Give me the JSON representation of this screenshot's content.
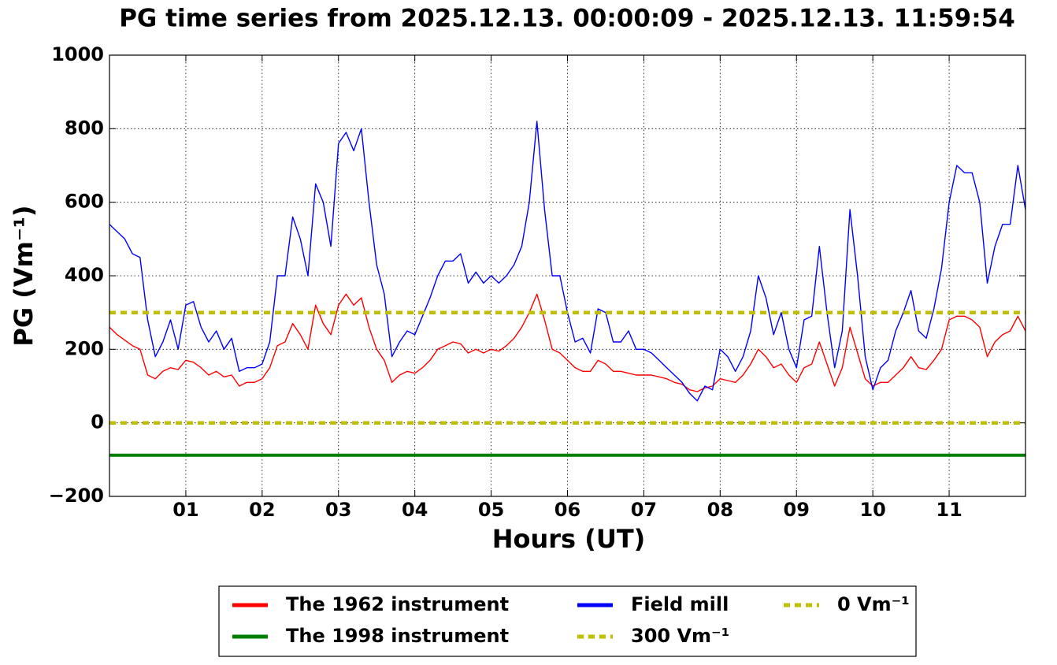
{
  "chart_data": {
    "type": "line",
    "title": "PG time series from 2025.12.13. 00:00:09 - 2025.12.13. 11:59:54",
    "xlabel": "Hours (UT)",
    "ylabel": "PG (Vm⁻¹)",
    "xlim": [
      0,
      12
    ],
    "ylim": [
      -200,
      1000
    ],
    "xticks": [
      {
        "value": 1,
        "label": "01"
      },
      {
        "value": 2,
        "label": "02"
      },
      {
        "value": 3,
        "label": "03"
      },
      {
        "value": 4,
        "label": "04"
      },
      {
        "value": 5,
        "label": "05"
      },
      {
        "value": 6,
        "label": "06"
      },
      {
        "value": 7,
        "label": "07"
      },
      {
        "value": 8,
        "label": "08"
      },
      {
        "value": 9,
        "label": "09"
      },
      {
        "value": 10,
        "label": "10"
      },
      {
        "value": 11,
        "label": "11"
      }
    ],
    "yticks": [
      {
        "value": -200,
        "label": "−200"
      },
      0,
      200,
      400,
      600,
      800,
      1000
    ],
    "grid": true,
    "legend": "below",
    "x": [
      0,
      0.1,
      0.2,
      0.3,
      0.4,
      0.5,
      0.6,
      0.7,
      0.8,
      0.9,
      1,
      1.1,
      1.2,
      1.3,
      1.4,
      1.5,
      1.6,
      1.7,
      1.8,
      1.9,
      2,
      2.1,
      2.2,
      2.3,
      2.4,
      2.5,
      2.6,
      2.7,
      2.8,
      2.9,
      3,
      3.1,
      3.2,
      3.3,
      3.4,
      3.5,
      3.6,
      3.7,
      3.8,
      3.9,
      4,
      4.1,
      4.2,
      4.3,
      4.4,
      4.5,
      4.6,
      4.7,
      4.8,
      4.9,
      5,
      5.1,
      5.2,
      5.3,
      5.4,
      5.5,
      5.6,
      5.7,
      5.8,
      5.9,
      6,
      6.1,
      6.2,
      6.3,
      6.4,
      6.5,
      6.6,
      6.7,
      6.8,
      6.9,
      7,
      7.1,
      7.2,
      7.3,
      7.4,
      7.5,
      7.6,
      7.7,
      7.8,
      7.9,
      8,
      8.1,
      8.2,
      8.3,
      8.4,
      8.5,
      8.6,
      8.7,
      8.8,
      8.9,
      9,
      9.1,
      9.2,
      9.3,
      9.4,
      9.5,
      9.6,
      9.7,
      9.8,
      9.9,
      10,
      10.1,
      10.2,
      10.3,
      10.4,
      10.5,
      10.6,
      10.7,
      10.8,
      10.9,
      11,
      11.1,
      11.2,
      11.3,
      11.4,
      11.5,
      11.6,
      11.7,
      11.8,
      11.9,
      12
    ],
    "series": [
      {
        "name": "The 1962 instrument",
        "color": "#ff0000",
        "width": 1.4,
        "values": [
          260,
          240,
          225,
          210,
          200,
          130,
          120,
          140,
          150,
          145,
          170,
          165,
          150,
          130,
          140,
          125,
          130,
          100,
          110,
          110,
          120,
          150,
          210,
          220,
          270,
          240,
          200,
          320,
          270,
          240,
          320,
          350,
          320,
          340,
          260,
          200,
          170,
          110,
          130,
          140,
          135,
          150,
          170,
          200,
          210,
          220,
          215,
          190,
          200,
          190,
          200,
          195,
          210,
          230,
          260,
          300,
          350,
          280,
          200,
          190,
          170,
          150,
          140,
          140,
          170,
          160,
          140,
          140,
          135,
          130,
          130,
          130,
          125,
          120,
          110,
          105,
          90,
          85,
          95,
          100,
          120,
          115,
          110,
          130,
          160,
          200,
          180,
          150,
          160,
          130,
          110,
          150,
          160,
          220,
          160,
          100,
          150,
          260,
          190,
          120,
          100,
          110,
          110,
          130,
          150,
          180,
          150,
          145,
          170,
          200,
          280,
          290,
          290,
          280,
          260,
          180,
          220,
          240,
          250,
          290,
          250
        ]
      },
      {
        "name": "The 1998 instrument",
        "color": "#008000",
        "width": 4,
        "x": [
          0,
          12
        ],
        "values": [
          -88,
          -88
        ]
      },
      {
        "name": "Field mill",
        "color": "#0000ff",
        "width": 1.4,
        "values": [
          540,
          520,
          500,
          460,
          450,
          280,
          180,
          220,
          280,
          200,
          320,
          330,
          260,
          220,
          250,
          200,
          230,
          140,
          150,
          150,
          160,
          220,
          400,
          400,
          560,
          500,
          400,
          650,
          600,
          480,
          760,
          790,
          740,
          800,
          600,
          430,
          350,
          180,
          220,
          250,
          240,
          290,
          340,
          400,
          440,
          440,
          460,
          380,
          410,
          380,
          400,
          380,
          400,
          430,
          480,
          600,
          820,
          580,
          400,
          400,
          300,
          220,
          230,
          190,
          310,
          300,
          220,
          220,
          250,
          200,
          200,
          190,
          170,
          150,
          130,
          110,
          80,
          60,
          100,
          90,
          200,
          180,
          140,
          180,
          250,
          400,
          340,
          240,
          300,
          200,
          150,
          280,
          290,
          480,
          300,
          150,
          250,
          580,
          400,
          180,
          90,
          150,
          170,
          250,
          300,
          360,
          250,
          230,
          310,
          420,
          600,
          700,
          680,
          680,
          600,
          380,
          480,
          540,
          540,
          700,
          580
        ]
      },
      {
        "name": "300 Vm⁻¹",
        "color": "#bfbf00",
        "width": 4.5,
        "dashed": true,
        "x": [
          0,
          12
        ],
        "values": [
          300,
          300
        ]
      },
      {
        "name": "0 Vm⁻¹",
        "color": "#bfbf00",
        "width": 4.5,
        "dashed": true,
        "x": [
          0,
          12
        ],
        "values": [
          0,
          0
        ]
      }
    ]
  }
}
